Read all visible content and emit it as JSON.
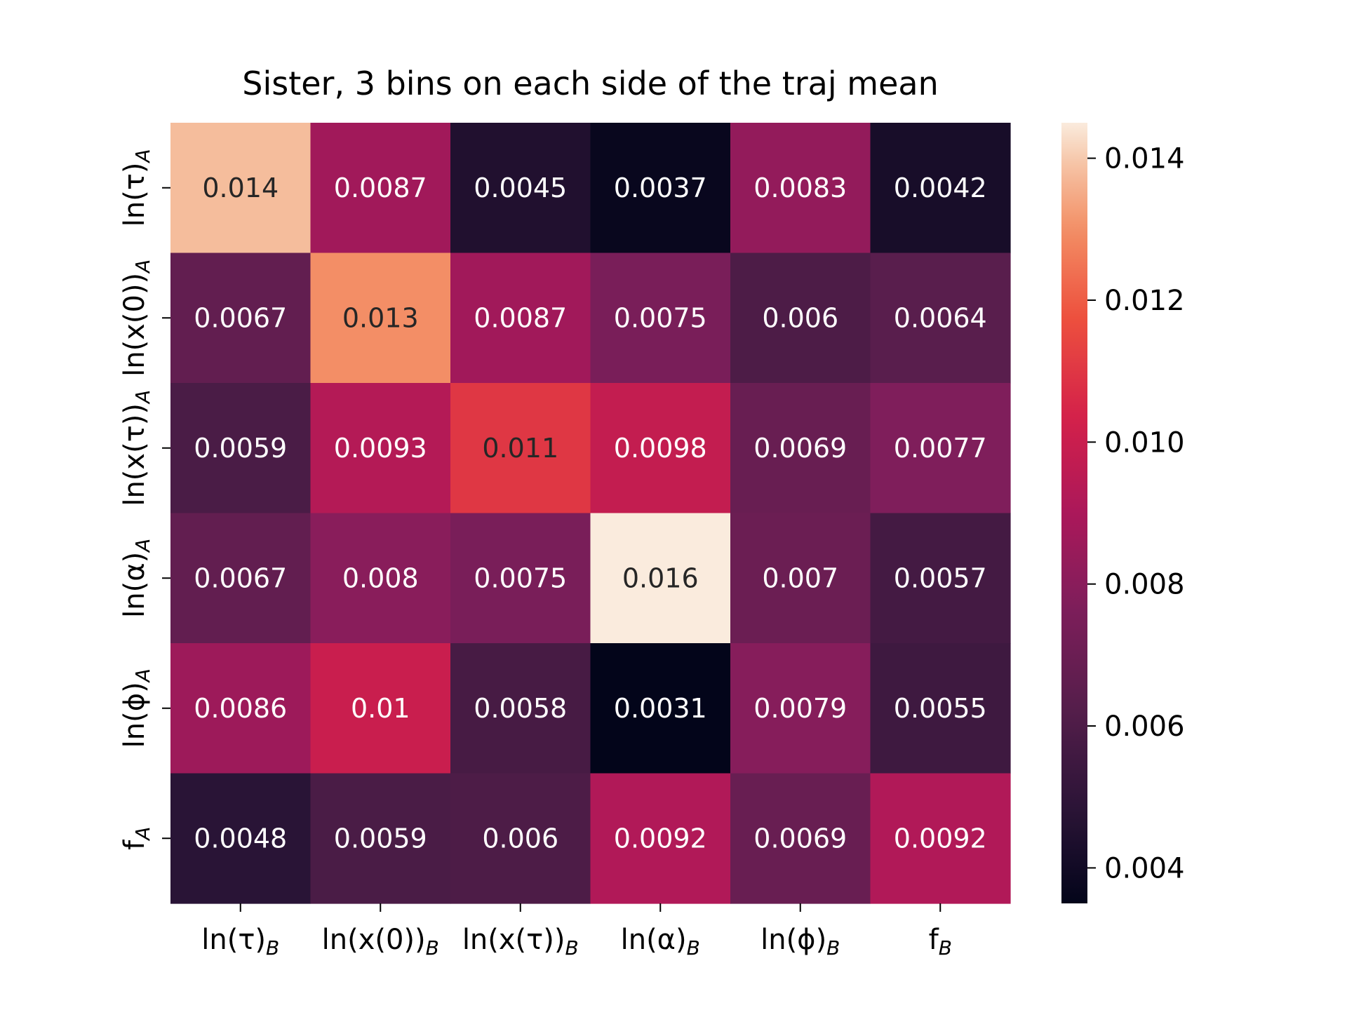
{
  "chart_data": {
    "type": "heatmap",
    "title": "Sister, 3 bins on each side of the traj mean",
    "row_labels": [
      {
        "base": "ln(τ)",
        "sub": "A"
      },
      {
        "base": "ln(x(0))",
        "sub": "A"
      },
      {
        "base": "ln(x(τ))",
        "sub": "A"
      },
      {
        "base": "ln(α)",
        "sub": "A"
      },
      {
        "base": "ln(ϕ)",
        "sub": "A"
      },
      {
        "base": "f",
        "sub": "A"
      }
    ],
    "col_labels": [
      {
        "base": "ln(τ)",
        "sub": "B"
      },
      {
        "base": "ln(x(0))",
        "sub": "B"
      },
      {
        "base": "ln(x(τ))",
        "sub": "B"
      },
      {
        "base": "ln(α)",
        "sub": "B"
      },
      {
        "base": "ln(ϕ)",
        "sub": "B"
      },
      {
        "base": "f",
        "sub": "B"
      }
    ],
    "cell_text": [
      [
        "0.014",
        "0.0087",
        "0.0045",
        "0.0037",
        "0.0083",
        "0.0042"
      ],
      [
        "0.0067",
        "0.013",
        "0.0087",
        "0.0075",
        "0.006",
        "0.0064"
      ],
      [
        "0.0059",
        "0.0093",
        "0.011",
        "0.0098",
        "0.0069",
        "0.0077"
      ],
      [
        "0.0067",
        "0.008",
        "0.0075",
        "0.016",
        "0.007",
        "0.0057"
      ],
      [
        "0.0086",
        "0.01",
        "0.0058",
        "0.0031",
        "0.0079",
        "0.0055"
      ],
      [
        "0.0048",
        "0.0059",
        "0.006",
        "0.0092",
        "0.0069",
        "0.0092"
      ]
    ],
    "values": [
      [
        0.0138,
        0.0087,
        0.0045,
        0.0037,
        0.0083,
        0.0042
      ],
      [
        0.0067,
        0.013,
        0.0087,
        0.0075,
        0.006,
        0.0064
      ],
      [
        0.0059,
        0.0093,
        0.011,
        0.0098,
        0.0069,
        0.0077
      ],
      [
        0.0067,
        0.008,
        0.0075,
        0.016,
        0.007,
        0.0057
      ],
      [
        0.0086,
        0.01,
        0.0058,
        0.0031,
        0.0079,
        0.0055
      ],
      [
        0.0048,
        0.0059,
        0.006,
        0.0092,
        0.0069,
        0.0092
      ]
    ],
    "colorbar": {
      "vmin": 0.0035,
      "vmax": 0.0145,
      "ticks": [
        0.004,
        0.006,
        0.008,
        0.01,
        0.012,
        0.014
      ],
      "tick_labels": [
        "0.004",
        "0.006",
        "0.008",
        "0.010",
        "0.012",
        "0.014"
      ]
    },
    "colormap": "rocket",
    "xlabel": "",
    "ylabel": ""
  }
}
